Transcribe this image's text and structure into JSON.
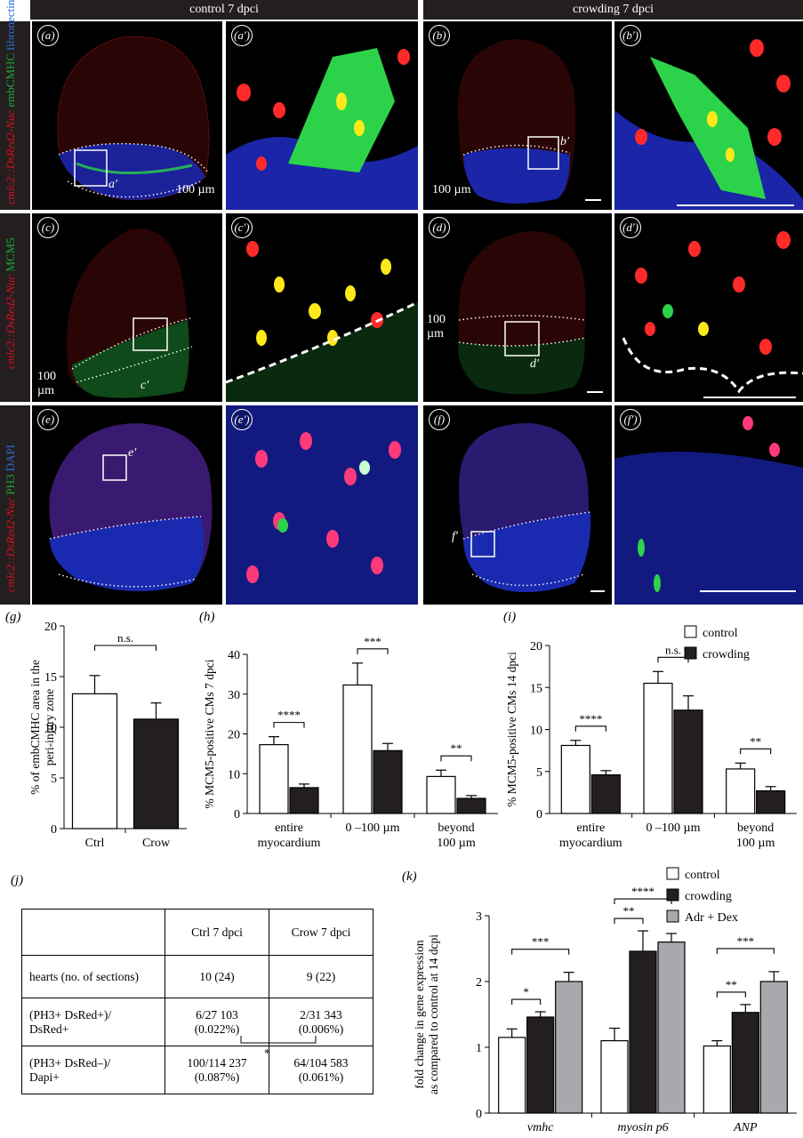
{
  "header": {
    "left": "control 7 dpci",
    "right": "crowding 7 dpci"
  },
  "rows": [
    {
      "side_parts": [
        {
          "text": "cmlc2::DsRed2-Nuc",
          "color": "#e0101c"
        },
        {
          "text": " embCMHC",
          "color": "#1fa83a"
        },
        {
          "text": " fibronectin",
          "color": "#2b6fd6"
        }
      ]
    },
    {
      "side_parts": [
        {
          "text": "cmlc2::DsRed2-Nuc",
          "color": "#e0101c"
        },
        {
          "text": " MCM5",
          "color": "#1fa83a"
        }
      ]
    },
    {
      "side_parts": [
        {
          "text": "cmlc2::DsRed2-Nuc",
          "color": "#e0101c"
        },
        {
          "text": " PH3",
          "color": "#1fa83a"
        },
        {
          "text": " DAPI",
          "color": "#2b6fd6"
        }
      ]
    }
  ],
  "panels": {
    "a": "(a)",
    "a2": "(a′)",
    "b": "(b)",
    "b2": "(b′)",
    "c": "(c)",
    "c2": "(c′)",
    "d": "(d)",
    "d2": "(d′)",
    "e": "(e)",
    "e2": "(e′)",
    "f": "(f)",
    "f2": "(f′)"
  },
  "insets": {
    "a": "a′",
    "b": "b′",
    "c": "c′",
    "d": "d′",
    "e": "e′",
    "f": "f′"
  },
  "scale_text": {
    "a": "100 µm",
    "b": "100 µm",
    "c": "100 µm",
    "d": "100 µm"
  },
  "colors": {
    "red_nuclei": "#ff2a2a",
    "green": "#2cd34a",
    "blue": "#2a3ee0",
    "yellow": "#ffe81a",
    "magenta": "#ff3a7a",
    "grey_bar": "#a7a9ac"
  },
  "chart_g": {
    "label": "(g)",
    "chart_data": {
      "type": "bar",
      "categories": [
        "Ctrl",
        "Crow"
      ],
      "values": [
        13.3,
        10.8
      ],
      "errors": [
        1.8,
        1.6
      ],
      "ylabel": "% of embCMHC area in the peri-injury zone",
      "ylim": [
        0,
        20
      ],
      "yticks": [
        0,
        5,
        10,
        15,
        20
      ],
      "annotations": [
        {
          "text": "n.s.",
          "between": [
            0,
            1
          ]
        }
      ]
    }
  },
  "chart_h": {
    "label": "(h)",
    "chart_data": {
      "type": "bar",
      "categories": [
        "entire myocardium",
        "0 –100 µm",
        "beyond 100 µm"
      ],
      "series": [
        {
          "name": "control",
          "values": [
            17.3,
            32.3,
            9.3
          ],
          "errors": [
            2.0,
            5.5,
            1.6
          ]
        },
        {
          "name": "crowding",
          "values": [
            6.5,
            15.8,
            3.8
          ],
          "errors": [
            0.9,
            1.8,
            0.7
          ]
        }
      ],
      "ylabel": "% MCM5-positive CMs 7 dpci",
      "ylim": [
        0,
        40
      ],
      "yticks": [
        0,
        10,
        20,
        30,
        40
      ],
      "annotations": [
        "****",
        "***",
        "**"
      ]
    }
  },
  "chart_i": {
    "label": "(i)",
    "chart_data": {
      "type": "bar",
      "categories": [
        "entire myocardium",
        "0 –100 µm",
        "beyond 100 µm"
      ],
      "series": [
        {
          "name": "control",
          "values": [
            8.1,
            15.5,
            5.3
          ],
          "errors": [
            0.6,
            1.4,
            0.7
          ]
        },
        {
          "name": "crowding",
          "values": [
            4.6,
            12.3,
            2.7
          ],
          "errors": [
            0.5,
            1.7,
            0.5
          ]
        }
      ],
      "ylabel": "% MCM5-positive CMs 14 dpci",
      "ylim": [
        0,
        20
      ],
      "yticks": [
        0,
        5,
        10,
        15,
        20
      ],
      "annotations": [
        "****",
        "n.s.",
        "**"
      ],
      "legend": {
        "placement": "top-right",
        "items": [
          "control",
          "crowding"
        ]
      }
    }
  },
  "chart_k": {
    "label": "(k)",
    "chart_data": {
      "type": "bar",
      "categories": [
        "vmhc",
        "myosin p6",
        "ANP"
      ],
      "series": [
        {
          "name": "control",
          "values": [
            1.15,
            1.1,
            1.02
          ],
          "errors": [
            0.13,
            0.19,
            0.08
          ]
        },
        {
          "name": "crowding",
          "values": [
            1.46,
            2.46,
            1.53
          ],
          "errors": [
            0.08,
            0.31,
            0.12
          ]
        },
        {
          "name": "Adr + Dex",
          "values": [
            2.0,
            2.6,
            2.0
          ],
          "errors": [
            0.14,
            0.13,
            0.15
          ]
        }
      ],
      "ylabel": "fold change in gene expression as compared to control at 14 dcpi",
      "ylim": [
        0,
        3
      ],
      "yticks": [
        0,
        1,
        2,
        3
      ],
      "annotations": [
        {
          "group": 0,
          "pairs": [
            [
              "*",
              0,
              1
            ],
            [
              "***",
              0,
              2
            ]
          ]
        },
        {
          "group": 1,
          "pairs": [
            [
              "**",
              0,
              1
            ],
            [
              "****",
              0,
              2
            ]
          ]
        },
        {
          "group": 2,
          "pairs": [
            [
              "**",
              0,
              1
            ],
            [
              "***",
              0,
              2
            ]
          ]
        }
      ],
      "legend": {
        "placement": "top-right",
        "items": [
          "control",
          "crowding",
          "Adr + Dex"
        ]
      }
    }
  },
  "table_j": {
    "label": "(j)",
    "headers": [
      "",
      "Ctrl  7 dpci",
      "Crow 7 dpci"
    ],
    "rows": [
      {
        "label": "hearts (no. of sections)",
        "ctrl": "10 (24)",
        "crow": "9 (22)"
      },
      {
        "label": "(PH3+ DsRed+)/\nDsRed+",
        "ctrl": "6/27 103\n(0.022%)",
        "crow": "2/31 343\n(0.006%)"
      },
      {
        "label": "(PH3+ DsRed–)/\nDapi+",
        "ctrl": "100/114 237\n(0.087%)",
        "crow": "64/104 583\n(0.061%)"
      }
    ],
    "significance": "*"
  }
}
